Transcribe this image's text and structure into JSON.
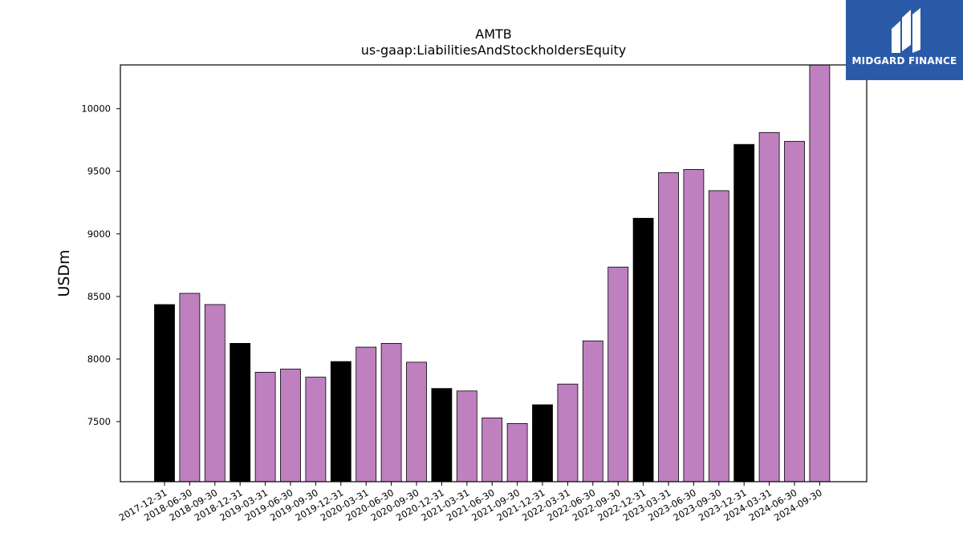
{
  "brand": {
    "name": "MIDGARD FINANCE",
    "bg_color": "#2b5aa8"
  },
  "colors": {
    "year_end_bar": "#000000",
    "quarter_bar": "#bf80bf",
    "bar_edge": "#000000"
  },
  "chart_data": {
    "type": "bar",
    "title": "AMTB",
    "subtitle": "us-gaap:LiabilitiesAndStockholdersEquity",
    "xlabel": "",
    "ylabel": "USDm",
    "ylim": [
      7020,
      10350
    ],
    "yticks": [
      7500,
      8000,
      8500,
      9000,
      9500,
      10000
    ],
    "grid": false,
    "legend": "none",
    "categories": [
      "2017-12-31",
      "2018-06-30",
      "2018-09-30",
      "2018-12-31",
      "2019-03-31",
      "2019-06-30",
      "2019-09-30",
      "2019-12-31",
      "2020-03-31",
      "2020-06-30",
      "2020-09-30",
      "2020-12-31",
      "2021-03-31",
      "2021-06-30",
      "2021-09-30",
      "2021-12-31",
      "2022-03-31",
      "2022-06-30",
      "2022-09-30",
      "2022-12-31",
      "2023-03-31",
      "2023-06-30",
      "2023-09-30",
      "2023-12-31",
      "2024-03-31",
      "2024-06-30",
      "2024-09-30"
    ],
    "values": [
      8435,
      8525,
      8435,
      8125,
      7895,
      7920,
      7855,
      7980,
      8095,
      8125,
      7975,
      7765,
      7745,
      7530,
      7485,
      7635,
      7800,
      8145,
      8735,
      9125,
      9490,
      9515,
      9345,
      9715,
      9810,
      9740,
      10350
    ],
    "year_end": [
      true,
      false,
      false,
      true,
      false,
      false,
      false,
      true,
      false,
      false,
      false,
      true,
      false,
      false,
      false,
      true,
      false,
      false,
      false,
      true,
      false,
      false,
      false,
      true,
      false,
      false,
      false
    ]
  }
}
